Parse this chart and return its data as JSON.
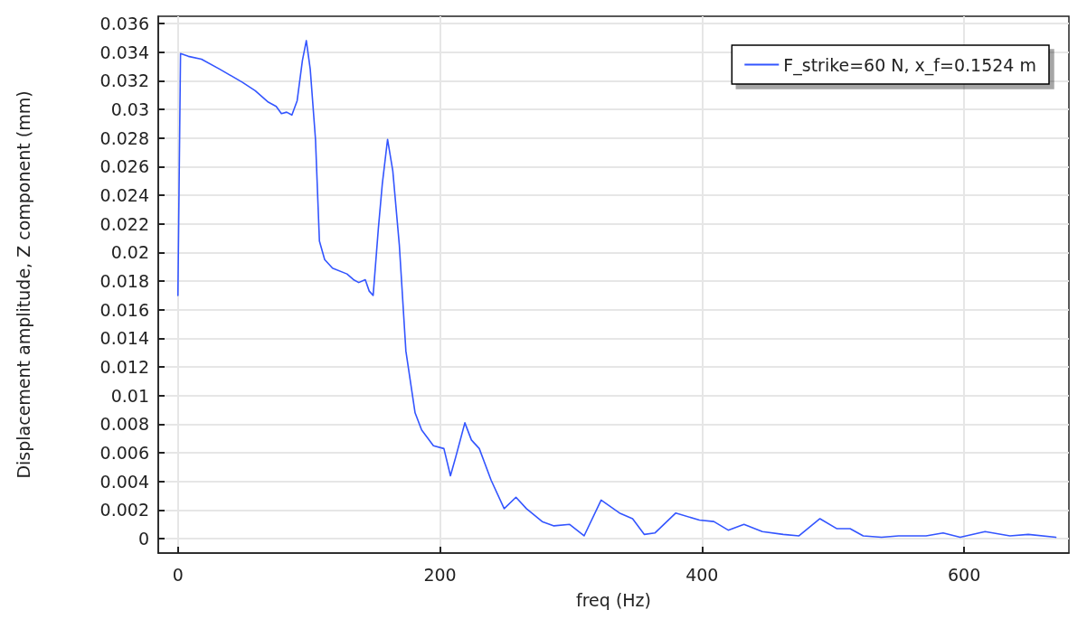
{
  "chart_data": {
    "type": "line",
    "xlabel": "freq (Hz)",
    "ylabel": "Displacement amplitude, Z component (mm)",
    "xlim": [
      -15,
      680
    ],
    "ylim": [
      -0.001,
      0.0365
    ],
    "xticks": [
      0,
      200,
      400,
      600
    ],
    "yticks": [
      0,
      0.002,
      0.004,
      0.006,
      0.008,
      0.01,
      0.012,
      0.014,
      0.016,
      0.018,
      0.02,
      0.022,
      0.024,
      0.026,
      0.028,
      0.03,
      0.032,
      0.034,
      0.036
    ],
    "grid": true,
    "legend": "top right",
    "marker": "none",
    "line_style": "solid",
    "series": [
      {
        "name": "F_strike=60 N, x_f=0.1524 m",
        "color": "#3355ff",
        "x": [
          0,
          2,
          8,
          18,
          32,
          49,
          59,
          69,
          75,
          79,
          83,
          87,
          91,
          95,
          98,
          101,
          105,
          108,
          112,
          118,
          129,
          134,
          138,
          143,
          146,
          149,
          153,
          156,
          160,
          164,
          169,
          174,
          181,
          186,
          195,
          203,
          208,
          212,
          219,
          224,
          230,
          239,
          249,
          258,
          266,
          278,
          287,
          299,
          310,
          323,
          337,
          347,
          356,
          364,
          380,
          398,
          409,
          420,
          432,
          446,
          462,
          474,
          490,
          503,
          513,
          523,
          537,
          550,
          571,
          584,
          597,
          616,
          635,
          649,
          670
        ],
        "values": [
          0.017,
          0.0339,
          0.0337,
          0.0335,
          0.0328,
          0.0319,
          0.0313,
          0.0305,
          0.0302,
          0.0297,
          0.0298,
          0.0296,
          0.0306,
          0.0334,
          0.0348,
          0.0328,
          0.0279,
          0.0208,
          0.0195,
          0.0189,
          0.0185,
          0.0181,
          0.0179,
          0.0181,
          0.0173,
          0.017,
          0.0217,
          0.0248,
          0.0279,
          0.0257,
          0.0205,
          0.0131,
          0.0088,
          0.0076,
          0.0065,
          0.0063,
          0.0044,
          0.0057,
          0.0081,
          0.0069,
          0.0063,
          0.0041,
          0.0021,
          0.0029,
          0.0021,
          0.0012,
          0.0009,
          0.001,
          0.0002,
          0.0027,
          0.0018,
          0.0014,
          0.0003,
          0.0004,
          0.0018,
          0.0013,
          0.0012,
          0.0006,
          0.001,
          0.0005,
          0.0003,
          0.0002,
          0.0014,
          0.0007,
          0.0007,
          0.0002,
          0.0001,
          0.0002,
          0.0002,
          0.0004,
          0.0001,
          0.0005,
          0.0002,
          0.0003,
          0.0001
        ]
      }
    ]
  }
}
